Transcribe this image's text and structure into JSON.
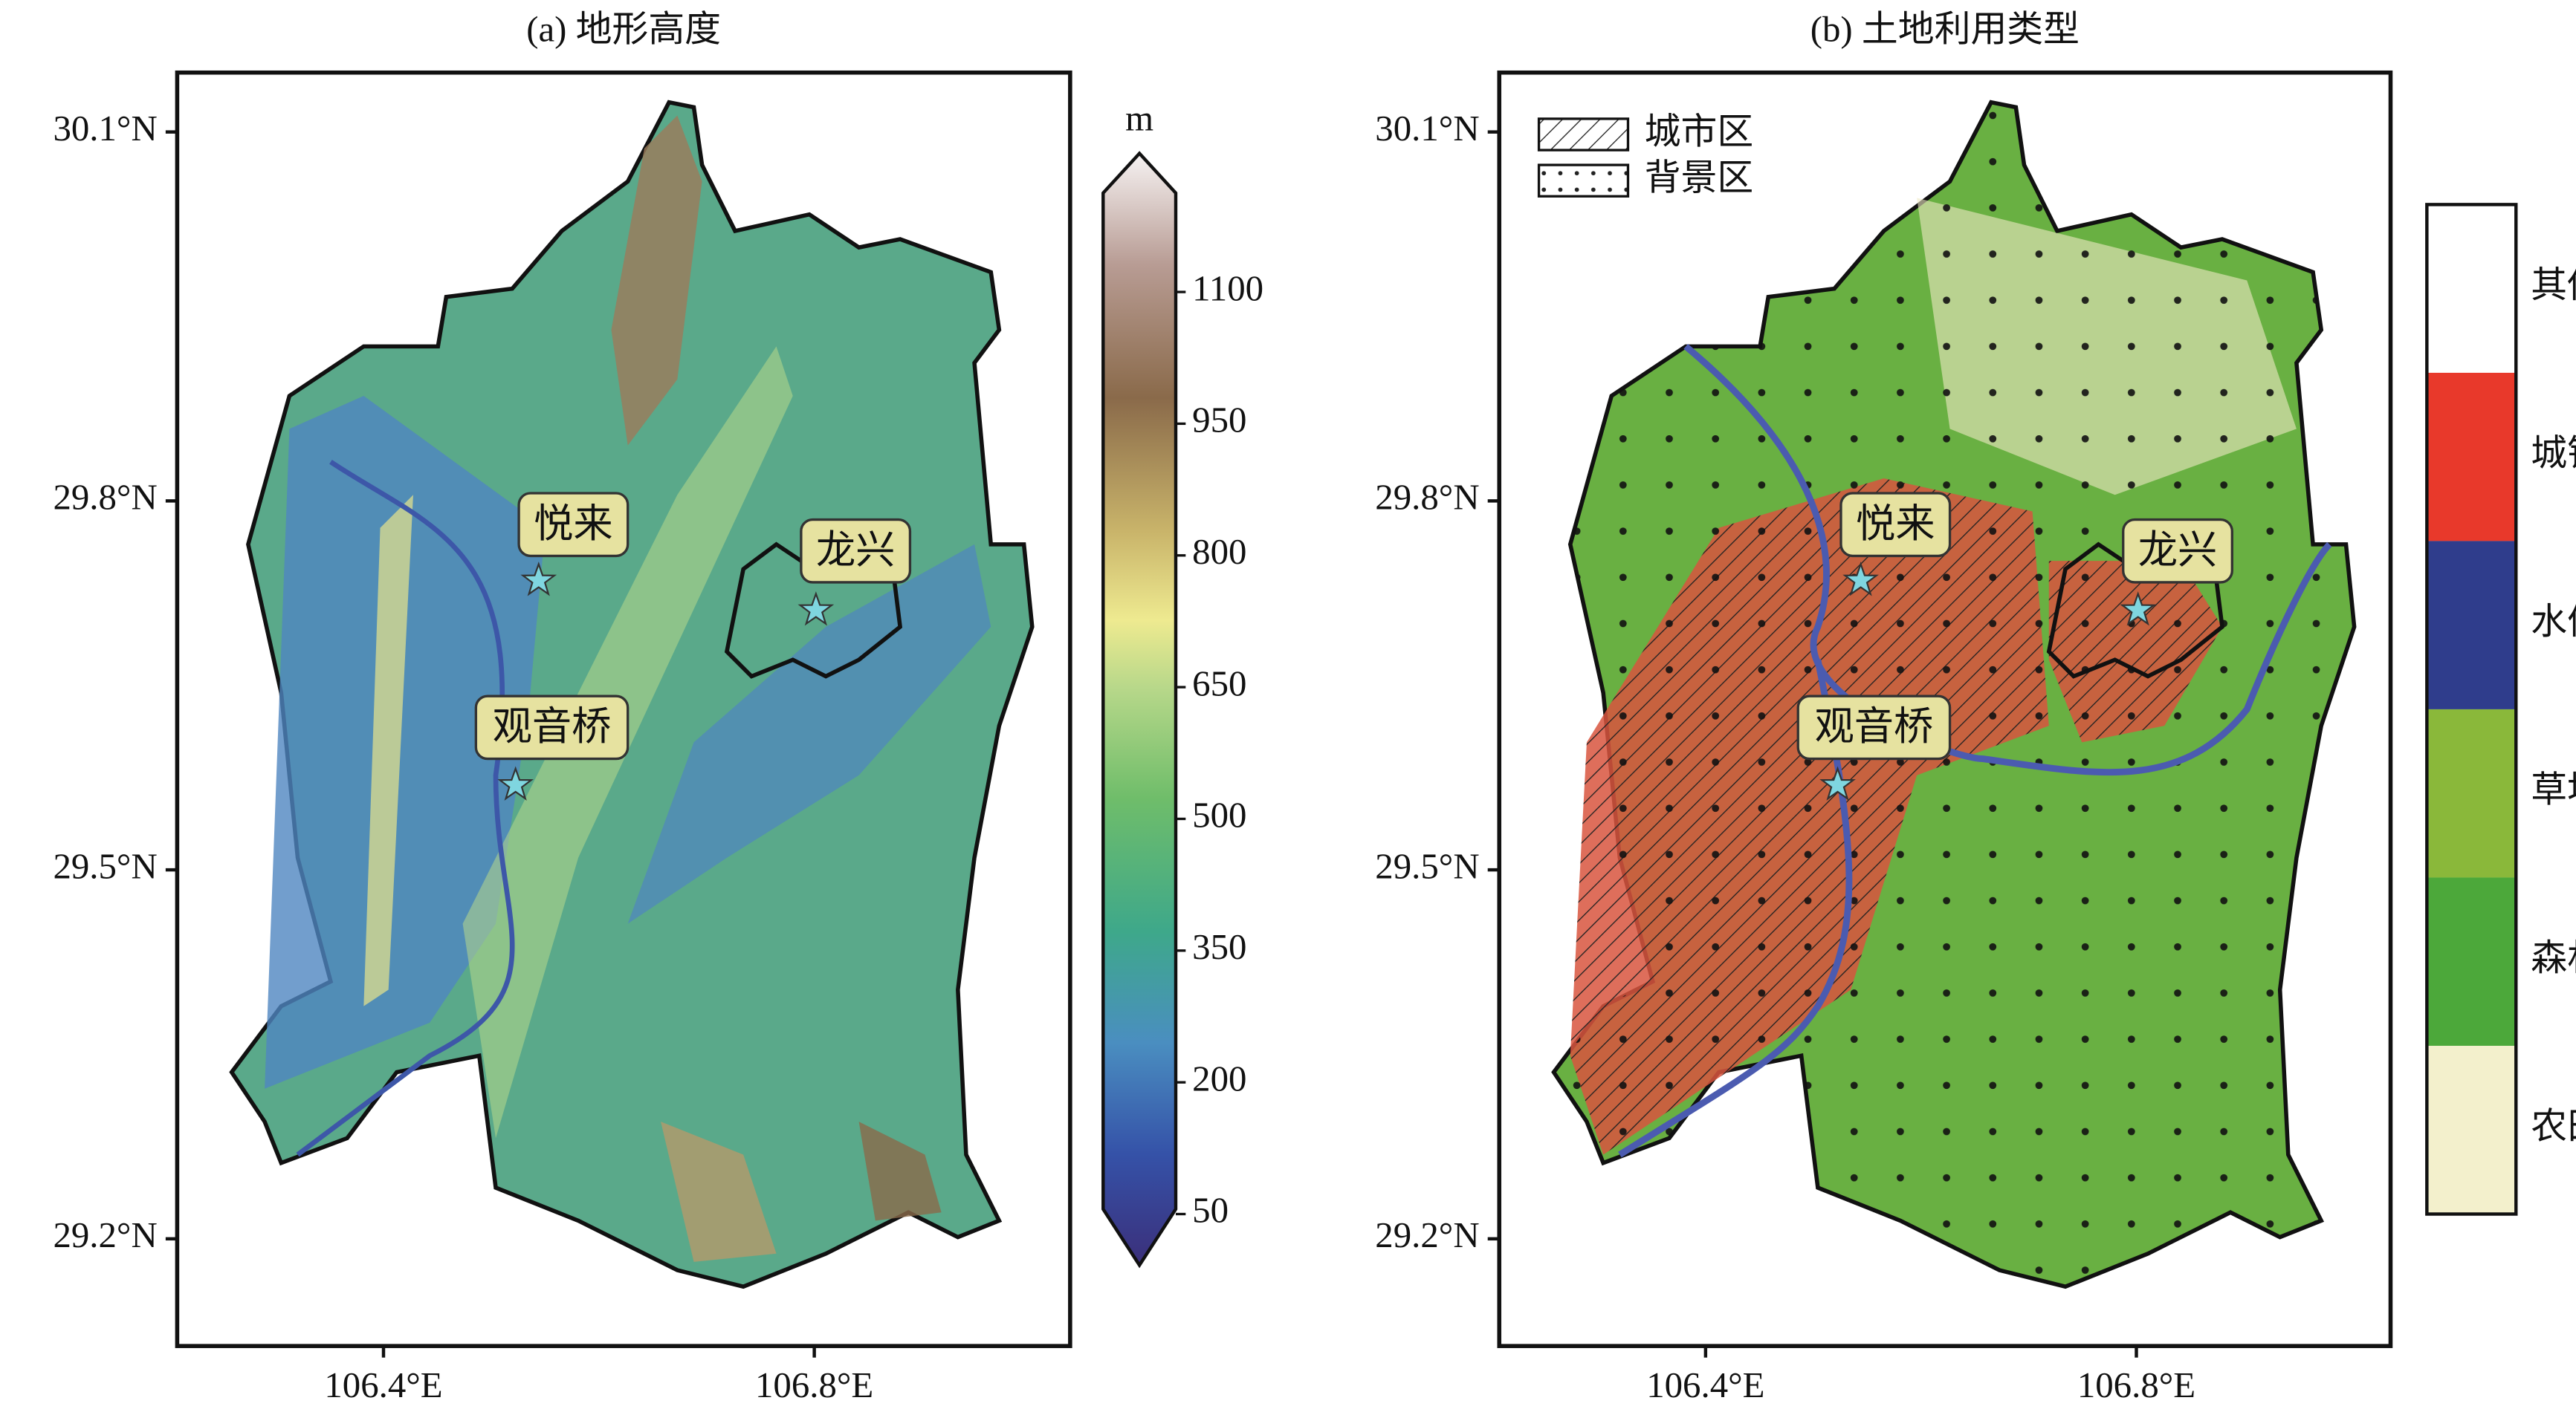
{
  "panels": [
    {
      "title": "(a) 地形高度",
      "lat_ticks": [
        {
          "value": 30.1,
          "label": "30.1°N"
        },
        {
          "value": 29.8,
          "label": "29.8°N"
        },
        {
          "value": 29.5,
          "label": "29.5°N"
        },
        {
          "value": 29.2,
          "label": "29.2°N"
        }
      ],
      "lon_ticks": [
        {
          "value": 106.4,
          "label": "106.4°E"
        },
        {
          "value": 106.8,
          "label": "106.8°E"
        }
      ],
      "sites": [
        "悦来",
        "龙兴",
        "观音桥"
      ]
    },
    {
      "title": "(b) 土地利用类型",
      "lat_ticks": [
        {
          "value": 30.1,
          "label": "30.1°N"
        },
        {
          "value": 29.8,
          "label": "29.8°N"
        },
        {
          "value": 29.5,
          "label": "29.5°N"
        },
        {
          "value": 29.2,
          "label": "29.2°N"
        }
      ],
      "lon_ticks": [
        {
          "value": 106.4,
          "label": "106.4°E"
        },
        {
          "value": 106.8,
          "label": "106.8°E"
        }
      ],
      "sites": [
        "悦来",
        "龙兴",
        "观音桥"
      ],
      "legend": [
        "城市区",
        "背景区"
      ]
    }
  ],
  "colorbar": {
    "unit": "m",
    "ticks": [
      50,
      200,
      350,
      500,
      650,
      800,
      950,
      1100
    ]
  },
  "land_use_classes": [
    "其他",
    "城镇",
    "水体",
    "草地",
    "森林",
    "农田"
  ]
}
